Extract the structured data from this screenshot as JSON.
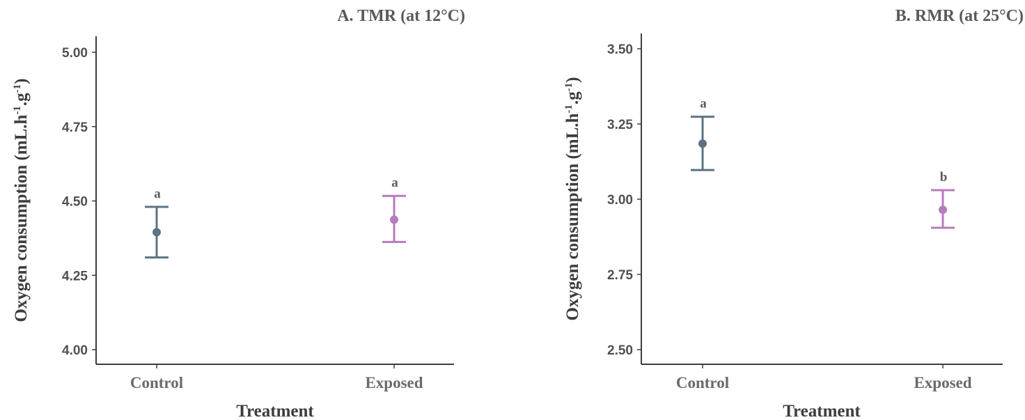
{
  "chart_data": [
    {
      "type": "scatter",
      "title": "A. TMR (at 12°C)",
      "xlabel": "Treatment",
      "ylabel": "Oxygen consumption (mL.h-1.g-1)",
      "ylabel_parts": {
        "pre": "Oxygen consumption (mL.h",
        "sup1": "-1",
        "mid": ".g",
        "sup2": "-1",
        "post": ")"
      },
      "categories": [
        "Control",
        "Exposed"
      ],
      "points": [
        {
          "category": "Control",
          "mean": 4.395,
          "lower": 4.31,
          "upper": 4.48,
          "label": "a",
          "color": "#5b7384"
        },
        {
          "category": "Exposed",
          "mean": 4.437,
          "lower": 4.362,
          "upper": 4.517,
          "label": "a",
          "color": "#b77bbf"
        }
      ],
      "ylim": [
        4.0,
        5.0
      ],
      "yticks": [
        "4.00",
        "4.25",
        "4.50",
        "4.75",
        "5.00"
      ],
      "grid": false
    },
    {
      "type": "scatter",
      "title": "B. RMR (at 25°C)",
      "xlabel": "Treatment",
      "ylabel": "Oxygen consumption (mL.h-1.g-1)",
      "ylabel_parts": {
        "pre": "Oxygen consumption (mL.h",
        "sup1": "-1",
        "mid": ".g",
        "sup2": "-1",
        "post": ")"
      },
      "categories": [
        "Control",
        "Exposed"
      ],
      "points": [
        {
          "category": "Control",
          "mean": 3.185,
          "lower": 3.097,
          "upper": 3.274,
          "label": "a",
          "color": "#5b7384"
        },
        {
          "category": "Exposed",
          "mean": 2.965,
          "lower": 2.905,
          "upper": 3.03,
          "label": "b",
          "color": "#b77bbf"
        }
      ],
      "ylim": [
        2.5,
        3.5
      ],
      "yticks": [
        "2.50",
        "2.75",
        "3.00",
        "3.25",
        "3.50"
      ],
      "grid": false
    }
  ]
}
